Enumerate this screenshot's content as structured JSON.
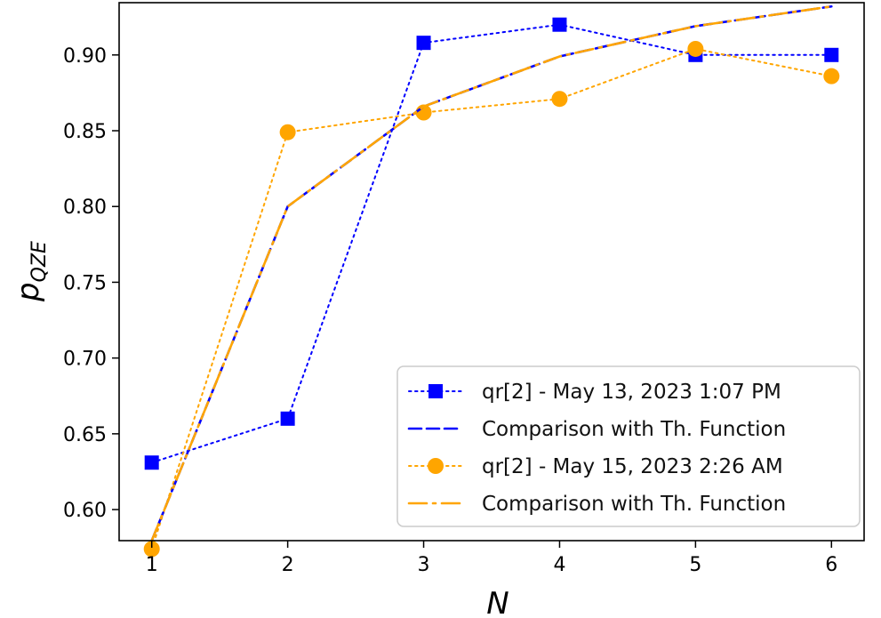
{
  "chart_data": {
    "type": "line",
    "xlabel": "N",
    "ylabel": "p",
    "ylabel_subscript": "QZE",
    "xlim": [
      0.76,
      6.24
    ],
    "ylim": [
      0.5795,
      0.9345
    ],
    "xticks": [
      1,
      2,
      3,
      4,
      5,
      6
    ],
    "yticks": [
      0.6,
      0.65,
      0.7,
      0.75,
      0.8,
      0.85,
      0.9
    ],
    "ytick_labels": [
      "0.60",
      "0.65",
      "0.70",
      "0.75",
      "0.80",
      "0.85",
      "0.90"
    ],
    "grid": false,
    "legend_position": "lower-right",
    "x": [
      1,
      2,
      3,
      4,
      5,
      6
    ],
    "series": [
      {
        "name": "qr[2] - May 13, 2023 1:07 PM",
        "values": [
          0.631,
          0.66,
          0.908,
          0.92,
          0.9,
          0.9
        ],
        "color": "#0000ff",
        "style": "dotted",
        "marker": "square"
      },
      {
        "name": "Comparison with Th. Function",
        "values": [
          0.5795,
          0.8,
          0.866,
          0.899,
          0.919,
          0.932
        ],
        "color": "#0000ff",
        "style": "dashed",
        "marker": "none"
      },
      {
        "name": "qr[2] - May 15, 2023 2:26 AM",
        "values": [
          0.574,
          0.849,
          0.862,
          0.871,
          0.904,
          0.886
        ],
        "color": "#ffa500",
        "style": "dotted",
        "marker": "circle"
      },
      {
        "name": "Comparison with Th. Function",
        "values": [
          0.5795,
          0.8,
          0.866,
          0.899,
          0.919,
          0.932
        ],
        "color": "#ffa500",
        "style": "dashdot",
        "marker": "none"
      }
    ]
  }
}
